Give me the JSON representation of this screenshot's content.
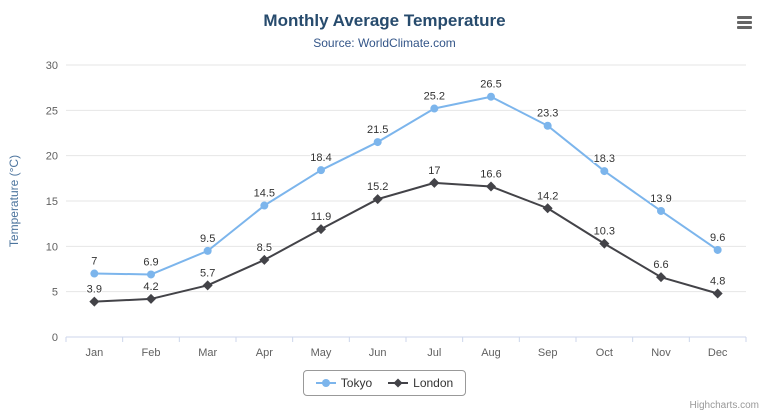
{
  "chart_data": {
    "type": "line",
    "title": "Monthly Average Temperature",
    "subtitle": "Source: WorldClimate.com",
    "categories": [
      "Jan",
      "Feb",
      "Mar",
      "Apr",
      "May",
      "Jun",
      "Jul",
      "Aug",
      "Sep",
      "Oct",
      "Nov",
      "Dec"
    ],
    "series": [
      {
        "name": "Tokyo",
        "color": "#7cb5ec",
        "marker": "circle",
        "values": [
          7,
          6.9,
          9.5,
          14.5,
          18.4,
          21.5,
          25.2,
          26.5,
          23.3,
          18.3,
          13.9,
          9.6
        ]
      },
      {
        "name": "London",
        "color": "#434348",
        "marker": "diamond",
        "values": [
          3.9,
          4.2,
          5.7,
          8.5,
          11.9,
          15.2,
          17,
          16.6,
          14.2,
          10.3,
          6.6,
          4.8
        ]
      }
    ],
    "xlabel": "",
    "ylabel": "Temperature (°C)",
    "ylim": [
      0,
      30
    ],
    "ytick_step": 5,
    "grid": true,
    "data_labels": true,
    "legend_position": "bottom"
  },
  "colors": {
    "title": "#274b6d",
    "subtitle": "#335588",
    "gridline": "#e6e6e6",
    "x_axis_line": "#ccd6eb",
    "axis_label": "#606060",
    "data_label": "#333333"
  },
  "credits": {
    "label": "Highcharts.com"
  },
  "menu": {
    "icon": "hamburger-menu-icon"
  }
}
